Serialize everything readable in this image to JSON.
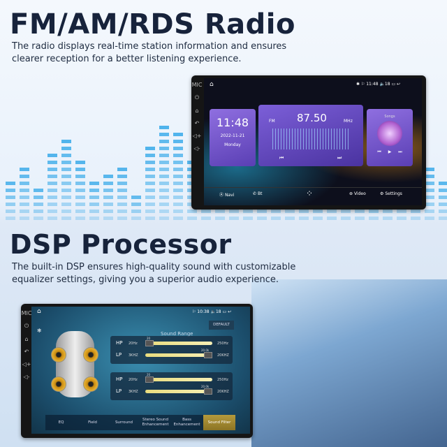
{
  "radio_section": {
    "title": "FM/AM/RDS Radio",
    "description_line1": "The radio displays real-time station information and ensures",
    "description_line2": "clearer reception for a better listening experience."
  },
  "dsp_section": {
    "title": "DSP Processor",
    "description_line1": "The built-in DSP ensures high-quality sound with customizable",
    "description_line2": "equalizer settings, giving you a superior audio experience."
  },
  "radio_screen": {
    "status": {
      "time": "11:48",
      "volume": "18"
    },
    "clock": {
      "time": "11:48",
      "date": "2022-11-21",
      "day": "Monday"
    },
    "radio": {
      "band": "FM",
      "frequency": "87.50",
      "unit": "MHz"
    },
    "music": {
      "label": "Songs"
    },
    "dock": [
      {
        "label": "Navi"
      },
      {
        "label": "Bt"
      },
      {
        "label": "Video"
      },
      {
        "label": "Settings"
      }
    ]
  },
  "dsp_screen": {
    "status": {
      "time": "10:38",
      "volume": "18"
    },
    "default_button": "DEFAULT",
    "sound_range_title": "Sound Range",
    "panels": [
      {
        "hp": {
          "label": "HP",
          "min": "20Hz",
          "max": "250Hz",
          "value": "20"
        },
        "lp": {
          "label": "LP",
          "min": "3KHZ",
          "max": "20KHZ",
          "value": "20.0k"
        }
      },
      {
        "hp": {
          "label": "HP",
          "min": "20Hz",
          "max": "250Hz",
          "value": "20"
        },
        "lp": {
          "label": "LP",
          "min": "3KHZ",
          "max": "20KHZ",
          "value": "20.0k"
        }
      }
    ],
    "tabs": [
      {
        "label": "EQ"
      },
      {
        "label": "Field"
      },
      {
        "label": "Surround"
      },
      {
        "label": "Stereo Sound Enhancement"
      },
      {
        "label": "Bass Enhancement"
      },
      {
        "label": "Sound Filter",
        "active": true
      }
    ]
  },
  "colors": {
    "title": "#17233b",
    "eq_bars": "#2aa4e8",
    "accent_active": "#c9a640"
  }
}
